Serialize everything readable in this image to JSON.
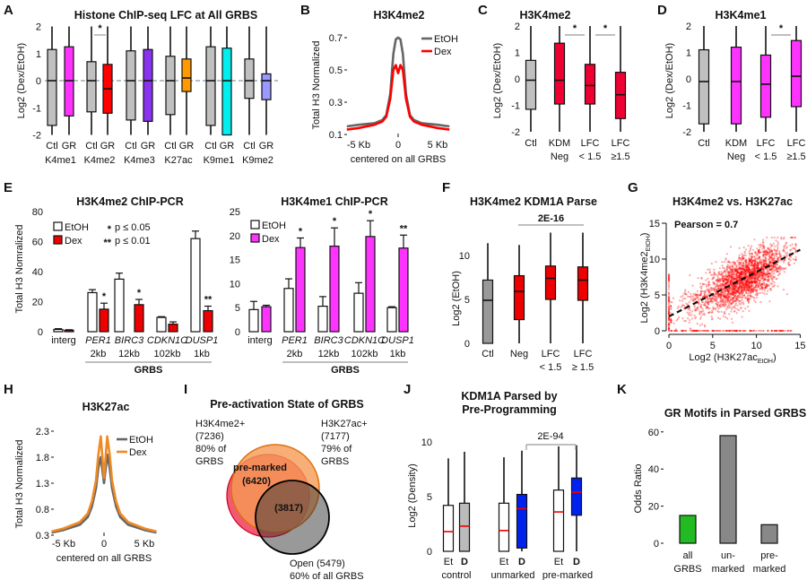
{
  "panel_labels": [
    "A",
    "B",
    "C",
    "D",
    "E",
    "F",
    "G",
    "H",
    "I",
    "J",
    "K"
  ],
  "chart_data": [
    {
      "id": "A",
      "type": "box",
      "title": "Histone ChIP-seq LFC at All GRBS",
      "ylabel": "Log2 (Dex/EtOH)",
      "ylim": [
        -2,
        2
      ],
      "yticks": [
        -2,
        -1,
        0,
        1,
        2
      ],
      "reference_line": 0,
      "control_color": "#c0c0c0",
      "groups": [
        {
          "name": "K4me1",
          "color": "#ff33ff",
          "boxes": [
            {
              "label": "Ctl",
              "min": -2,
              "q1": -1.65,
              "median": 0,
              "q3": 1.15,
              "max": 2
            },
            {
              "label": "GR",
              "min": -2,
              "q1": -1.3,
              "median": 0,
              "q3": 1.25,
              "max": 2
            }
          ]
        },
        {
          "name": "K4me2",
          "color": "#ff0000",
          "boxes": [
            {
              "label": "Ctl",
              "min": -2,
              "q1": -1.15,
              "median": 0,
              "q3": 0.7,
              "max": 2
            },
            {
              "label": "GR",
              "min": -2,
              "q1": -1.2,
              "median": -0.3,
              "q3": 0.6,
              "max": 2
            }
          ]
        },
        {
          "name": "K4me3",
          "color": "#8833ee",
          "boxes": [
            {
              "label": "Ctl",
              "min": -2,
              "q1": -1.45,
              "median": 0,
              "q3": 1.1,
              "max": 2
            },
            {
              "label": "GR",
              "min": -2,
              "q1": -1.5,
              "median": 0,
              "q3": 1.15,
              "max": 2
            }
          ]
        },
        {
          "name": "K27ac",
          "color": "#ff9900",
          "boxes": [
            {
              "label": "Ctl",
              "min": -2,
              "q1": -1.25,
              "median": 0,
              "q3": 0.9,
              "max": 2
            },
            {
              "label": "GR",
              "min": -2,
              "q1": -0.4,
              "median": 0.1,
              "q3": 0.8,
              "max": 2
            }
          ]
        },
        {
          "name": "K9me1",
          "color": "#00eeee",
          "boxes": [
            {
              "label": "Ctl",
              "min": -2,
              "q1": -1.65,
              "median": 0,
              "q3": 1.25,
              "max": 2
            },
            {
              "label": "GR",
              "min": -2,
              "q1": -2,
              "median": 0,
              "q3": 1.2,
              "max": 2
            }
          ]
        },
        {
          "name": "K9me2",
          "color": "#9999ff",
          "boxes": [
            {
              "label": "Ctl",
              "min": -2,
              "q1": -0.65,
              "median": 0,
              "q3": 0.8,
              "max": 2
            },
            {
              "label": "GR",
              "min": -2,
              "q1": -0.7,
              "median": 0,
              "q3": 0.25,
              "max": 2
            }
          ]
        }
      ],
      "significance": [
        {
          "group": "K4me2",
          "label": "*"
        }
      ]
    },
    {
      "id": "B",
      "type": "line",
      "title": "H3K4me2",
      "ylabel": "Total H3 Normalized",
      "xlabel": "centered on all GRBS",
      "yticks": [
        0.1,
        0.3,
        0.5,
        0.7
      ],
      "xticks": [
        {
          "value": -5,
          "label": "-5 Kb"
        },
        {
          "value": 0,
          "label": "0"
        },
        {
          "value": 5,
          "label": "5 Kb"
        }
      ],
      "x": [
        -6.5,
        -5,
        -3,
        -2,
        -1.5,
        -1,
        -0.6,
        -0.3,
        0,
        0.3,
        0.6,
        1,
        1.5,
        2,
        3,
        5,
        6.5
      ],
      "series": [
        {
          "name": "EtOH",
          "color": "#666666",
          "values": [
            0.15,
            0.16,
            0.17,
            0.19,
            0.22,
            0.35,
            0.6,
            0.69,
            0.7,
            0.69,
            0.6,
            0.35,
            0.22,
            0.19,
            0.17,
            0.16,
            0.15
          ]
        },
        {
          "name": "Dex",
          "color": "#ff0000",
          "values": [
            0.13,
            0.14,
            0.16,
            0.18,
            0.21,
            0.32,
            0.5,
            0.53,
            0.48,
            0.53,
            0.5,
            0.32,
            0.21,
            0.18,
            0.16,
            0.14,
            0.13
          ]
        }
      ],
      "legend": "top-right"
    },
    {
      "id": "C",
      "type": "box",
      "title": "H3K4me2",
      "ylabel": "Log2 (Dex/EtOH)",
      "ylim": [
        -2,
        2
      ],
      "yticks": [
        -2,
        -1,
        0,
        1,
        2
      ],
      "boxes": [
        {
          "label": [
            "Ctl",
            ""
          ],
          "color": "#c0c0c0",
          "min": -2,
          "q1": -1.15,
          "median": -0.05,
          "q3": 0.7,
          "max": 2
        },
        {
          "label": [
            "KDM",
            "Neg"
          ],
          "color": "#ee0033",
          "min": -2,
          "q1": -0.95,
          "median": -0.05,
          "q3": 1.35,
          "max": 2
        },
        {
          "label": [
            "LFC",
            "< 1.5"
          ],
          "color": "#ee0033",
          "min": -2,
          "q1": -0.95,
          "median": -0.25,
          "q3": 0.55,
          "max": 2
        },
        {
          "label": [
            "LFC",
            "≥1.5"
          ],
          "color": "#ee0033",
          "min": -2,
          "q1": -1.5,
          "median": -0.6,
          "q3": 0.25,
          "max": 2
        }
      ],
      "significance": [
        {
          "between": [
            1,
            2
          ],
          "label": "*"
        },
        {
          "between": [
            2,
            3
          ],
          "label": "*"
        }
      ]
    },
    {
      "id": "D",
      "type": "box",
      "title": "H3K4me1",
      "ylabel": "Log2 (Dex/EtOH)",
      "ylim": [
        -2,
        2
      ],
      "yticks": [
        -2,
        -1,
        0,
        1,
        2
      ],
      "boxes": [
        {
          "label": [
            "Ctl",
            ""
          ],
          "color": "#c0c0c0",
          "min": -2,
          "q1": -1.7,
          "median": -0.1,
          "q3": 1.1,
          "max": 2
        },
        {
          "label": [
            "KDM",
            "Neg"
          ],
          "color": "#ff33ff",
          "min": -2,
          "q1": -1.7,
          "median": -0.1,
          "q3": 1.2,
          "max": 2
        },
        {
          "label": [
            "LFC",
            "< 1.5"
          ],
          "color": "#ff33ff",
          "min": -2,
          "q1": -1.45,
          "median": -0.2,
          "q3": 0.9,
          "max": 2
        },
        {
          "label": [
            "LFC",
            "≥1.5"
          ],
          "color": "#ff33ff",
          "min": -2,
          "q1": -1.05,
          "median": 0.1,
          "q3": 1.45,
          "max": 2
        }
      ],
      "significance": [
        {
          "between": [
            2,
            3
          ],
          "label": "*"
        }
      ]
    },
    {
      "id": "E-left",
      "type": "bar",
      "title": "H3K4me2 ChIP-PCR",
      "ylabel": "Total H3 Nomralized",
      "ylim": [
        0,
        80
      ],
      "yticks": [
        0,
        20,
        40,
        60,
        80
      ],
      "categories": [
        {
          "name": "interg",
          "distance": "",
          "italic": false
        },
        {
          "name": "PER1",
          "distance": "2kb",
          "italic": true
        },
        {
          "name": "BIRC3",
          "distance": "12kb",
          "italic": true
        },
        {
          "name": "CDKN1C",
          "distance": "102kb",
          "italic": true
        },
        {
          "name": "DUSP1",
          "distance": "1kb",
          "italic": true
        }
      ],
      "group_label": "GRBS",
      "series": [
        {
          "name": "EtOH",
          "color": "#ffffff",
          "values": [
            1.5,
            26,
            35,
            9.5,
            62
          ],
          "errors": [
            0.5,
            2,
            4,
            0.5,
            5
          ]
        },
        {
          "name": "Dex",
          "color": "#ee0000",
          "values": [
            1,
            15,
            18,
            5,
            14
          ],
          "errors": [
            0.3,
            4,
            3.5,
            1.5,
            3
          ]
        }
      ],
      "stars": [
        "",
        "*",
        "*",
        "",
        "**"
      ],
      "sig_legend": [
        {
          "mark": "*",
          "text": "p ≤ 0.05"
        },
        {
          "mark": "**",
          "text": "p ≤ 0.01"
        }
      ]
    },
    {
      "id": "E-right",
      "type": "bar",
      "title": "H3K4me1 ChIP-PCR",
      "ylim": [
        0,
        25
      ],
      "yticks": [
        0,
        5,
        10,
        15,
        20,
        25
      ],
      "categories": [
        {
          "name": "interg",
          "distance": "",
          "italic": false
        },
        {
          "name": "PER1",
          "distance": "2kb",
          "italic": true
        },
        {
          "name": "BIRC3",
          "distance": "12kb",
          "italic": true
        },
        {
          "name": "CDKN1C",
          "distance": "102kb",
          "italic": true
        },
        {
          "name": "DUSP1",
          "distance": "1kb",
          "italic": true
        }
      ],
      "group_label": "GRBS",
      "series": [
        {
          "name": "EtOH",
          "color": "#ffffff",
          "values": [
            4.6,
            9,
            5.3,
            8,
            5
          ],
          "errors": [
            1.7,
            2,
            2,
            2.2,
            0.2
          ]
        },
        {
          "name": "Dex",
          "color": "#ff33ff",
          "values": [
            5.2,
            17.5,
            17.8,
            19.8,
            17.4
          ],
          "errors": [
            0.3,
            2,
            3.8,
            3.3,
            2.7
          ]
        }
      ],
      "stars": [
        "",
        "*",
        "*",
        "*",
        "**"
      ]
    },
    {
      "id": "F",
      "type": "box",
      "title": "H3K4me2 KDM1A Parse",
      "ylabel": "Log2 (EtOH)",
      "ylim": [
        0,
        13
      ],
      "yticks": [
        0,
        5,
        10
      ],
      "boxes": [
        {
          "label": [
            "Ctl",
            ""
          ],
          "color": "#999999",
          "min": 0,
          "q1": 0,
          "median": 4.9,
          "q3": 7.2,
          "max": 11.4
        },
        {
          "label": [
            "Neg",
            ""
          ],
          "color": "#ee0000",
          "min": 0,
          "q1": 2.7,
          "median": 5.9,
          "q3": 7.7,
          "max": 11.2
        },
        {
          "label": [
            "LFC",
            "< 1.5"
          ],
          "color": "#ee0000",
          "min": 0,
          "q1": 5.0,
          "median": 7.4,
          "q3": 8.8,
          "max": 12.6
        },
        {
          "label": [
            "LFC",
            "≥ 1.5"
          ],
          "color": "#ee0000",
          "min": 0,
          "q1": 4.9,
          "median": 7.2,
          "q3": 8.7,
          "max": 12.6
        }
      ],
      "significance": [
        {
          "between": [
            1,
            3
          ],
          "label": "2E-16"
        }
      ]
    },
    {
      "id": "G",
      "type": "scatter",
      "title": "H3K4me2 vs. H3K27ac",
      "xlabel": {
        "main": "Log2 (H3K27ac",
        "sub": "EtOH",
        "close": ")"
      },
      "ylabel": {
        "main": "Log2 (H3K4me2",
        "sub": "EtOH",
        "close": ")"
      },
      "xlim": [
        0,
        15
      ],
      "ylim": [
        0,
        15
      ],
      "xticks": [
        0,
        5,
        10,
        15
      ],
      "yticks": [
        0,
        5,
        10,
        15
      ],
      "annotation": "Pearson = 0.7",
      "pearson": 0.7,
      "fit_line": {
        "intercept": 2,
        "slope": 0.62,
        "style": "dashed"
      },
      "point_color": "#ff0000"
    },
    {
      "id": "H",
      "type": "line",
      "title": "H3K27ac",
      "ylabel": "Total H3 Normalized",
      "xlabel": "centered on all GRBS",
      "yticks": [
        0.3,
        0.8,
        1.3,
        1.8,
        2.3
      ],
      "xticks": [
        {
          "value": -5,
          "label": "-5 Kb"
        },
        {
          "value": 0,
          "label": "0"
        },
        {
          "value": 5,
          "label": "5 Kb"
        }
      ],
      "x": [
        -6.5,
        -5,
        -3,
        -2,
        -1.5,
        -1,
        -0.7,
        -0.4,
        0,
        0.4,
        0.7,
        1,
        1.5,
        2,
        3,
        5,
        6.5
      ],
      "series": [
        {
          "name": "EtOH",
          "color": "#666666",
          "values": [
            0.35,
            0.4,
            0.5,
            0.65,
            0.85,
            1.2,
            1.6,
            1.8,
            1.3,
            1.85,
            1.6,
            1.2,
            0.85,
            0.65,
            0.5,
            0.4,
            0.35
          ]
        },
        {
          "name": "Dex",
          "color": "#f08a24",
          "values": [
            0.37,
            0.43,
            0.55,
            0.72,
            0.95,
            1.35,
            1.85,
            2.2,
            1.4,
            2.2,
            1.85,
            1.35,
            0.95,
            0.72,
            0.55,
            0.43,
            0.37
          ]
        }
      ],
      "legend": "top-right"
    },
    {
      "id": "I",
      "type": "venn",
      "title": "Pre-activation State of GRBS",
      "sets": [
        {
          "name": "H3K4me2+",
          "count": "(7236)",
          "pct": "80% of",
          "pct2": "GRBS",
          "color": "#ee1133"
        },
        {
          "name": "H3K27ac+",
          "count": "(7177)",
          "pct": "79% of",
          "pct2": "GRBS",
          "color": "#f08a24"
        },
        {
          "name": "Open (5479)",
          "pct": "60% of all GRBS",
          "color": "#000000"
        }
      ],
      "overlaps": [
        {
          "label": "pre-marked",
          "count": "(6420)"
        },
        {
          "label": "",
          "count": "(3817)"
        }
      ]
    },
    {
      "id": "J",
      "type": "box",
      "title": [
        "KDM1A Parsed by",
        "Pre-Programming"
      ],
      "ylabel": "Log2 (Density)",
      "ylim": [
        0,
        10
      ],
      "yticks": [
        0,
        5,
        10
      ],
      "median_color": "#ee0000",
      "groups": [
        {
          "name": "control",
          "boxes": [
            {
              "label": "Et",
              "color": "#ffffff",
              "min": 0,
              "q1": 0,
              "median": 1.8,
              "q3": 4.2,
              "max": 8.5
            },
            {
              "label": "D",
              "color": "#bbbbbb",
              "min": 0,
              "q1": 0,
              "median": 2.3,
              "q3": 4.4,
              "max": 9.1
            }
          ]
        },
        {
          "name": "unmarked",
          "boxes": [
            {
              "label": "Et",
              "color": "#ffffff",
              "min": 0,
              "q1": 0,
              "median": 1.9,
              "q3": 4.4,
              "max": 8.6
            },
            {
              "label": "D",
              "color": "#0022ee",
              "min": 0,
              "q1": 0.3,
              "median": 3.9,
              "q3": 5.2,
              "max": 9.2
            }
          ]
        },
        {
          "name": "pre-marked",
          "boxes": [
            {
              "label": "Et",
              "color": "#ffffff",
              "min": 0,
              "q1": 0,
              "median": 3.6,
              "q3": 5.6,
              "max": 9.6
            },
            {
              "label": "D",
              "color": "#0022ee",
              "min": 0,
              "q1": 3.3,
              "median": 5.4,
              "q3": 6.7,
              "max": 9.7
            }
          ]
        }
      ],
      "significance": [
        {
          "between": [
            "unmarked D",
            "pre-marked D"
          ],
          "label": "2E-94"
        }
      ]
    },
    {
      "id": "K",
      "type": "bar",
      "title": "GR Motifs in Parsed GRBS",
      "ylabel": "Odds Ratio",
      "ylim": [
        0,
        60
      ],
      "yticks": [
        0,
        20,
        40,
        60
      ],
      "categories": [
        [
          "all",
          "GRBS"
        ],
        [
          "un-",
          "marked"
        ],
        [
          "pre-",
          "marked"
        ]
      ],
      "values": [
        15,
        58,
        10
      ],
      "colors": [
        "#22bb22",
        "#888888",
        "#888888"
      ]
    }
  ]
}
